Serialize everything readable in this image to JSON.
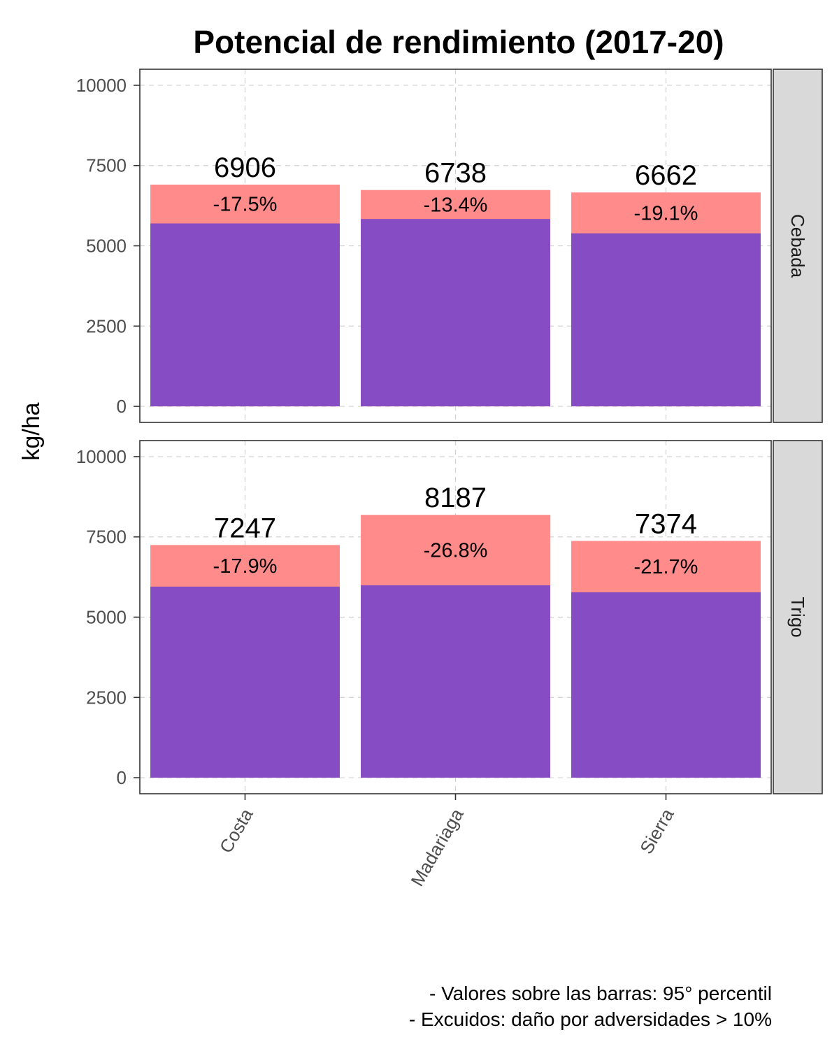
{
  "chart_data": {
    "type": "bar",
    "title": "Potencial de rendimiento (2017-20)",
    "ylabel": "kg/ha",
    "xlabel": "",
    "ylim": [
      -500,
      10500
    ],
    "yticks": [
      0,
      2500,
      5000,
      7500,
      10000
    ],
    "grid": true,
    "categories": [
      "Costa",
      "Madariaga",
      "Sierra"
    ],
    "colors": {
      "total": "#ff8b8b",
      "retained": "#854cc3"
    },
    "panels": [
      {
        "name": "Cebada",
        "totals": [
          6906,
          6738,
          6662
        ],
        "total_labels": [
          "6906",
          "6738",
          "6662"
        ],
        "retained": [
          5697,
          5835,
          5389
        ],
        "pct_labels": [
          "-17.5%",
          "-13.4%",
          "-19.1%"
        ]
      },
      {
        "name": "Trigo",
        "totals": [
          7247,
          8187,
          7374
        ],
        "total_labels": [
          "7247",
          "8187",
          "7374"
        ],
        "retained": [
          5950,
          5993,
          5774
        ],
        "pct_labels": [
          "-17.9%",
          "-26.8%",
          "-21.7%"
        ]
      }
    ]
  },
  "caption": {
    "line1": "- Valores sobre las barras: 95° percentil",
    "line2": "- Excuidos: daño por adversidades > 10%"
  }
}
